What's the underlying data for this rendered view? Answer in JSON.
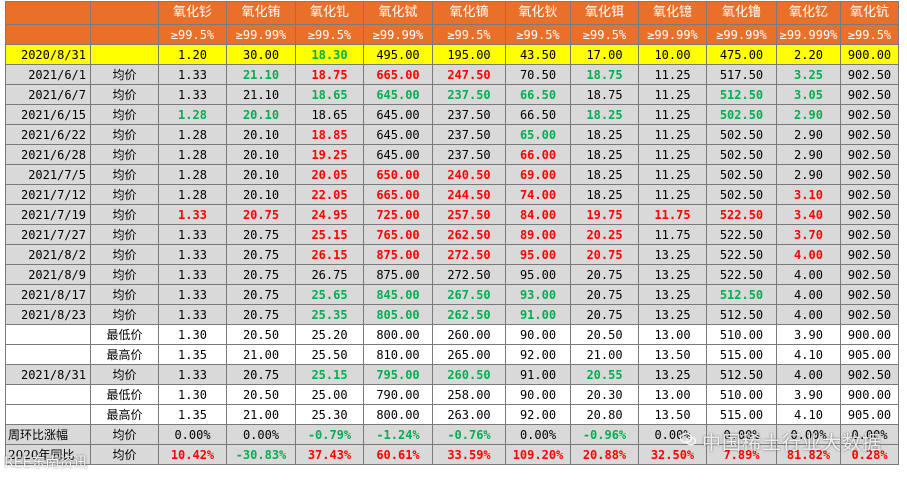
{
  "header": {
    "names": [
      "氧化钐",
      "氧化铕",
      "氧化钆",
      "氧化铽",
      "氧化镝",
      "氧化钬",
      "氧化铒",
      "氧化镱",
      "氧化镥",
      "氧化钇",
      "氧化钪"
    ],
    "purities": [
      "≥99.5%",
      "≥99.99%",
      "≥99.5%",
      "≥99.99%",
      "≥99.5%",
      "≥99.5%",
      "≥99.5%",
      "≥99.99%",
      "≥99.99%",
      "≥99.999%",
      "≥99.5%"
    ]
  },
  "base_row": {
    "date": "2020/8/31",
    "values": [
      "1.20",
      "30.00",
      "18.30",
      "495.00",
      "195.00",
      "43.50",
      "17.00",
      "10.00",
      "475.00",
      "2.20",
      "900.00"
    ],
    "colors": [
      "",
      "",
      "green",
      "",
      "",
      "",
      "",
      "",
      "",
      "",
      ""
    ]
  },
  "rows": [
    {
      "date": "2021/6/1",
      "type": "均价",
      "values": [
        "1.33",
        "21.10",
        "18.75",
        "665.00",
        "247.50",
        "70.50",
        "18.75",
        "11.25",
        "517.50",
        "3.25",
        "902.50"
      ],
      "colors": [
        "",
        "green",
        "red",
        "red",
        "red",
        "",
        "green",
        "",
        "",
        "green",
        ""
      ]
    },
    {
      "date": "2021/6/7",
      "type": "均价",
      "values": [
        "1.33",
        "21.10",
        "18.65",
        "645.00",
        "237.50",
        "66.50",
        "18.75",
        "11.25",
        "512.50",
        "3.05",
        "902.50"
      ],
      "colors": [
        "",
        "",
        "green",
        "green",
        "green",
        "green",
        "",
        "",
        "green",
        "green",
        ""
      ]
    },
    {
      "date": "2021/6/15",
      "type": "均价",
      "values": [
        "1.28",
        "20.10",
        "18.65",
        "645.00",
        "237.50",
        "66.50",
        "18.25",
        "11.25",
        "502.50",
        "2.90",
        "902.50"
      ],
      "colors": [
        "green",
        "green",
        "",
        "",
        "",
        "",
        "green",
        "",
        "green",
        "green",
        ""
      ]
    },
    {
      "date": "2021/6/22",
      "type": "均价",
      "values": [
        "1.28",
        "20.10",
        "18.85",
        "645.00",
        "237.50",
        "65.00",
        "18.25",
        "11.25",
        "502.50",
        "2.90",
        "902.50"
      ],
      "colors": [
        "",
        "",
        "red",
        "",
        "",
        "green",
        "",
        "",
        "",
        "",
        ""
      ]
    },
    {
      "date": "2021/6/28",
      "type": "均价",
      "values": [
        "1.28",
        "20.10",
        "19.25",
        "645.00",
        "237.50",
        "66.00",
        "18.25",
        "11.25",
        "502.50",
        "2.90",
        "902.50"
      ],
      "colors": [
        "",
        "",
        "red",
        "",
        "",
        "red",
        "",
        "",
        "",
        "",
        ""
      ]
    },
    {
      "date": "2021/7/5",
      "type": "均价",
      "values": [
        "1.28",
        "20.10",
        "20.05",
        "650.00",
        "240.50",
        "69.00",
        "18.25",
        "11.25",
        "502.50",
        "2.90",
        "902.50"
      ],
      "colors": [
        "",
        "",
        "red",
        "red",
        "red",
        "red",
        "",
        "",
        "",
        "",
        ""
      ]
    },
    {
      "date": "2021/7/12",
      "type": "均价",
      "values": [
        "1.28",
        "20.10",
        "22.05",
        "665.00",
        "244.50",
        "74.00",
        "18.25",
        "11.25",
        "502.50",
        "3.10",
        "902.50"
      ],
      "colors": [
        "",
        "",
        "red",
        "red",
        "red",
        "red",
        "",
        "",
        "",
        "red",
        ""
      ]
    },
    {
      "date": "2021/7/19",
      "type": "均价",
      "values": [
        "1.33",
        "20.75",
        "24.95",
        "725.00",
        "257.50",
        "84.00",
        "19.75",
        "11.75",
        "522.50",
        "3.40",
        "902.50"
      ],
      "colors": [
        "red",
        "red",
        "red",
        "red",
        "red",
        "red",
        "red",
        "red",
        "red",
        "red",
        ""
      ]
    },
    {
      "date": "2021/7/27",
      "type": "均价",
      "values": [
        "1.33",
        "20.75",
        "25.15",
        "765.00",
        "262.50",
        "89.00",
        "20.25",
        "11.75",
        "522.50",
        "3.70",
        "902.50"
      ],
      "colors": [
        "",
        "",
        "red",
        "red",
        "red",
        "red",
        "red",
        "",
        "",
        "red",
        ""
      ]
    },
    {
      "date": "2021/8/2",
      "type": "均价",
      "values": [
        "1.33",
        "20.75",
        "26.15",
        "875.00",
        "272.50",
        "95.00",
        "20.75",
        "13.25",
        "522.50",
        "4.00",
        "902.50"
      ],
      "colors": [
        "",
        "",
        "red",
        "red",
        "red",
        "red",
        "red",
        "",
        "",
        "red",
        ""
      ]
    },
    {
      "date": "2021/8/9",
      "type": "均价",
      "values": [
        "1.33",
        "20.75",
        "26.75",
        "875.00",
        "272.50",
        "95.00",
        "20.75",
        "13.25",
        "522.50",
        "4.00",
        "902.50"
      ],
      "colors": [
        "",
        "",
        "",
        "",
        "",
        "",
        "",
        "",
        "",
        "",
        ""
      ]
    },
    {
      "date": "2021/8/17",
      "type": "均价",
      "values": [
        "1.33",
        "20.75",
        "25.65",
        "845.00",
        "267.50",
        "93.00",
        "20.75",
        "13.25",
        "512.50",
        "4.00",
        "902.50"
      ],
      "colors": [
        "",
        "",
        "green",
        "green",
        "green",
        "green",
        "",
        "",
        "green",
        "",
        ""
      ]
    },
    {
      "date": "2021/8/23",
      "type": "均价",
      "values": [
        "1.33",
        "20.75",
        "25.35",
        "805.00",
        "262.50",
        "91.00",
        "20.75",
        "13.25",
        "512.50",
        "4.00",
        "902.50"
      ],
      "colors": [
        "",
        "",
        "green",
        "green",
        "green",
        "green",
        "",
        "",
        "",
        "",
        ""
      ]
    }
  ],
  "week_block1": {
    "low": {
      "type": "最低价",
      "values": [
        "1.30",
        "20.50",
        "25.20",
        "800.00",
        "260.00",
        "90.00",
        "20.50",
        "13.00",
        "510.00",
        "3.90",
        "900.00"
      ]
    },
    "high": {
      "type": "最高价",
      "values": [
        "1.35",
        "21.00",
        "25.50",
        "810.00",
        "265.00",
        "92.00",
        "21.00",
        "13.50",
        "515.00",
        "4.10",
        "905.00"
      ]
    }
  },
  "current": {
    "date": "2021/8/31",
    "avg": {
      "type": "均价",
      "values": [
        "1.33",
        "20.75",
        "25.15",
        "795.00",
        "260.50",
        "91.00",
        "20.55",
        "13.25",
        "512.50",
        "4.00",
        "902.50"
      ],
      "colors": [
        "",
        "",
        "green",
        "green",
        "green",
        "",
        "green",
        "",
        "",
        "",
        ""
      ]
    },
    "low": {
      "type": "最低价",
      "values": [
        "1.30",
        "20.50",
        "25.00",
        "790.00",
        "258.00",
        "90.00",
        "20.30",
        "13.00",
        "510.00",
        "3.90",
        "900.00"
      ]
    },
    "high": {
      "type": "最高价",
      "values": [
        "1.35",
        "21.00",
        "25.30",
        "800.00",
        "263.00",
        "92.00",
        "20.80",
        "13.50",
        "515.00",
        "4.10",
        "905.00"
      ]
    }
  },
  "weekly_change": {
    "label": "周环比涨幅",
    "type": "均价",
    "values": [
      "0.00%",
      "0.00%",
      "-0.79%",
      "-1.24%",
      "-0.76%",
      "0.00%",
      "-0.96%",
      "0.00%",
      "0.00%",
      "0.00%",
      "0.00%"
    ],
    "colors": [
      "",
      "",
      "green",
      "green",
      "green",
      "",
      "green",
      "",
      "",
      "",
      ""
    ]
  },
  "yearly_change": {
    "label": "2020年同比",
    "type": "均价",
    "values": [
      "10.42%",
      "-30.83%",
      "37.43%",
      "60.61%",
      "33.59%",
      "109.20%",
      "20.88%",
      "32.50%",
      "7.89%",
      "81.82%",
      "0.28%"
    ],
    "colors": [
      "red",
      "green",
      "red",
      "red",
      "red",
      "red",
      "red",
      "red",
      "red",
      "red",
      "red"
    ]
  },
  "watermarks": {
    "right": "中国稀土行业大数据",
    "left": "REE东南资讯"
  }
}
